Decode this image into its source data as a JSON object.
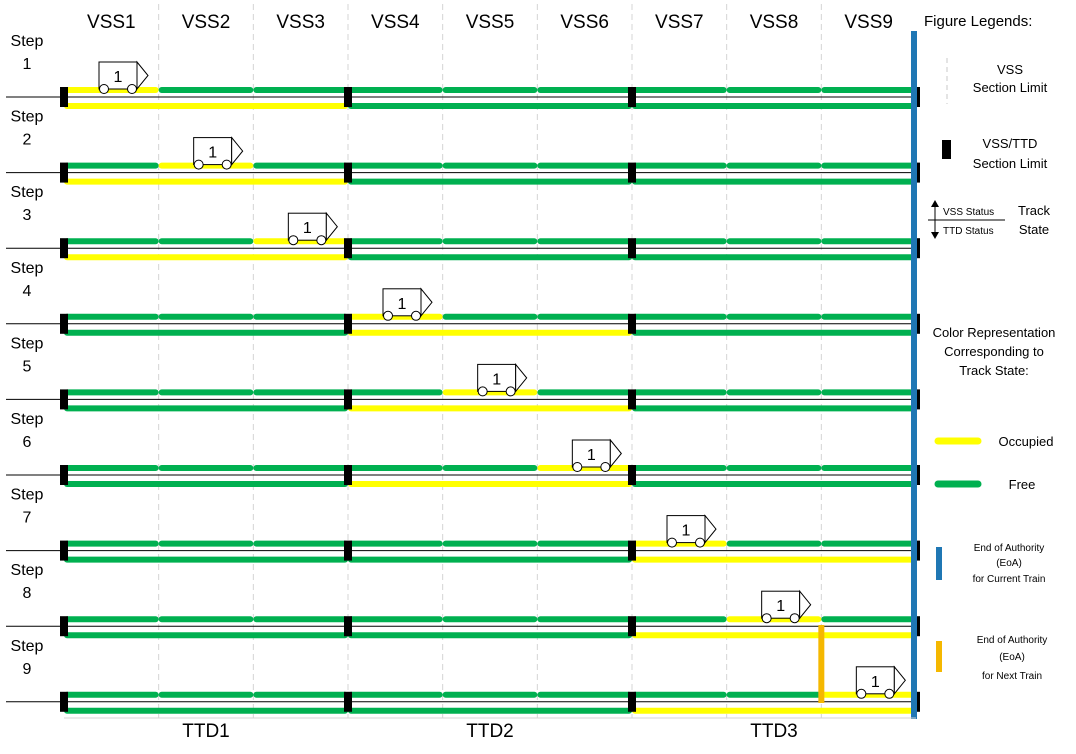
{
  "columns": [
    "VSS1",
    "VSS2",
    "VSS3",
    "VSS4",
    "VSS5",
    "VSS6",
    "VSS7",
    "VSS8",
    "VSS9"
  ],
  "ttd_groups": [
    "TTD1",
    "TTD2",
    "TTD3"
  ],
  "train_label": "1",
  "colors": {
    "occupied": "#ffff00",
    "free": "#00b050",
    "eoa_current": "#1f77b4",
    "eoa_next": "#f5b800"
  },
  "steps": [
    {
      "label": "Step 1",
      "vss": [
        "occupied",
        "free",
        "free",
        "free",
        "free",
        "free",
        "free",
        "free",
        "free"
      ],
      "ttd": [
        "occupied",
        "free",
        "free"
      ],
      "train_at": 1
    },
    {
      "label": "Step 2",
      "vss": [
        "free",
        "occupied",
        "free",
        "free",
        "free",
        "free",
        "free",
        "free",
        "free"
      ],
      "ttd": [
        "occupied",
        "free",
        "free"
      ],
      "train_at": 2
    },
    {
      "label": "Step 3",
      "vss": [
        "free",
        "free",
        "occupied",
        "free",
        "free",
        "free",
        "free",
        "free",
        "free"
      ],
      "ttd": [
        "occupied",
        "free",
        "free"
      ],
      "train_at": 3
    },
    {
      "label": "Step 4",
      "vss": [
        "free",
        "free",
        "free",
        "occupied",
        "free",
        "free",
        "free",
        "free",
        "free"
      ],
      "ttd": [
        "free",
        "occupied",
        "free"
      ],
      "train_at": 4
    },
    {
      "label": "Step 5",
      "vss": [
        "free",
        "free",
        "free",
        "free",
        "occupied",
        "free",
        "free",
        "free",
        "free"
      ],
      "ttd": [
        "free",
        "occupied",
        "free"
      ],
      "train_at": 5
    },
    {
      "label": "Step 6",
      "vss": [
        "free",
        "free",
        "free",
        "free",
        "free",
        "occupied",
        "free",
        "free",
        "free"
      ],
      "ttd": [
        "free",
        "occupied",
        "free"
      ],
      "train_at": 6
    },
    {
      "label": "Step 7",
      "vss": [
        "free",
        "free",
        "free",
        "free",
        "free",
        "free",
        "occupied",
        "free",
        "free"
      ],
      "ttd": [
        "free",
        "free",
        "occupied"
      ],
      "train_at": 7
    },
    {
      "label": "Step 8",
      "vss": [
        "free",
        "free",
        "free",
        "free",
        "free",
        "free",
        "free",
        "occupied",
        "free"
      ],
      "ttd": [
        "free",
        "free",
        "occupied"
      ],
      "train_at": 8
    },
    {
      "label": "Step 9",
      "vss": [
        "free",
        "free",
        "free",
        "free",
        "free",
        "free",
        "free",
        "free",
        "occupied"
      ],
      "ttd": [
        "free",
        "free",
        "occupied"
      ],
      "train_at": 9
    }
  ],
  "legend": {
    "title": "Figure Legends:",
    "vss_limit": [
      "VSS",
      "Section Limit"
    ],
    "vss_ttd_limit": [
      "VSS/TTD",
      "Section Limit"
    ],
    "vss_status": "VSS Status",
    "ttd_status": "TTD Status",
    "track_state": [
      "Track",
      "State"
    ],
    "color_rep": [
      "Color Representation",
      "Corresponding to",
      "Track State:"
    ],
    "occupied": "Occupied",
    "free": "Free",
    "eoa_current": [
      "End of Authority",
      "(EoA)",
      "for Current Train"
    ],
    "eoa_next": [
      "End of Authority",
      "(EoA)",
      "for Next Train"
    ]
  }
}
